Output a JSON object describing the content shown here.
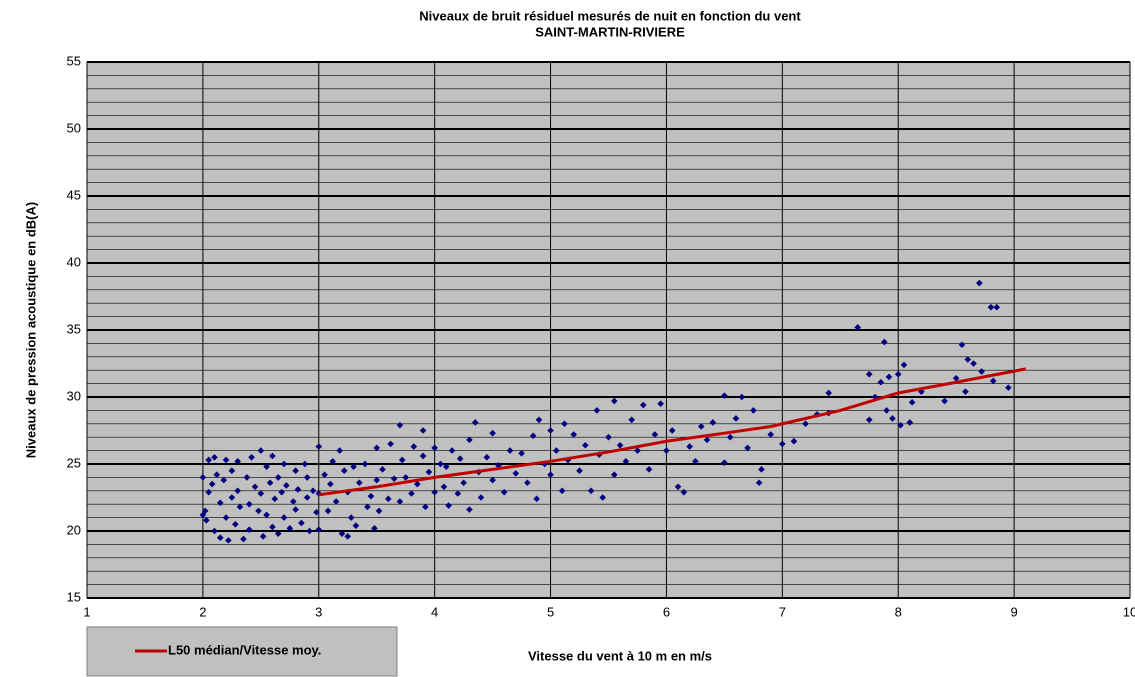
{
  "chart_data": {
    "type": "scatter",
    "title": "Niveaux de bruit  résiduel mesurés de nuit en fonction du vent",
    "subtitle": "SAINT-MARTIN-RIVIERE",
    "x_label": "Vitesse du vent  à 10 m en m/s",
    "y_label": "Niveaux de pression acoustique en dB(A)",
    "xlim": [
      1,
      10
    ],
    "xticks": [
      1,
      2,
      3,
      4,
      5,
      6,
      7,
      8,
      9,
      10
    ],
    "ylim": [
      15,
      55
    ],
    "yticks": [
      15,
      20,
      25,
      30,
      35,
      40,
      45,
      50,
      55
    ],
    "yminorticks": [
      16,
      17,
      18,
      19,
      21,
      22,
      23,
      24,
      26,
      27,
      28,
      29,
      31,
      32,
      33,
      34,
      36,
      37,
      38,
      39,
      41,
      42,
      43,
      44,
      46,
      47,
      48,
      49,
      51,
      52,
      53,
      54
    ],
    "grid": true,
    "legend": "bottom-left",
    "series": [
      {
        "type": "scatter",
        "color": "#000080",
        "x": [
          2.0,
          2.0,
          2.02,
          2.03,
          2.05,
          2.05,
          2.08,
          2.1,
          2.1,
          2.12,
          2.15,
          2.15,
          2.18,
          2.2,
          2.2,
          2.22,
          2.25,
          2.25,
          2.28,
          2.3,
          2.3,
          2.32,
          2.35,
          2.38,
          2.4,
          2.4,
          2.42,
          2.45,
          2.48,
          2.5,
          2.5,
          2.52,
          2.55,
          2.55,
          2.58,
          2.6,
          2.6,
          2.62,
          2.65,
          2.65,
          2.68,
          2.7,
          2.7,
          2.72,
          2.75,
          2.78,
          2.8,
          2.8,
          2.82,
          2.85,
          2.88,
          2.9,
          2.9,
          2.92,
          2.95,
          2.98,
          3.0,
          3.0,
          3.0,
          3.05,
          3.08,
          3.1,
          3.12,
          3.15,
          3.18,
          3.2,
          3.22,
          3.25,
          3.25,
          3.28,
          3.3,
          3.32,
          3.35,
          3.4,
          3.42,
          3.45,
          3.48,
          3.5,
          3.5,
          3.52,
          3.55,
          3.6,
          3.62,
          3.65,
          3.7,
          3.7,
          3.72,
          3.75,
          3.8,
          3.82,
          3.85,
          3.9,
          3.9,
          3.92,
          3.95,
          4.0,
          4.0,
          4.05,
          4.08,
          4.1,
          4.12,
          4.15,
          4.2,
          4.22,
          4.25,
          4.3,
          4.3,
          4.35,
          4.38,
          4.4,
          4.45,
          4.5,
          4.5,
          4.55,
          4.6,
          4.65,
          4.7,
          4.75,
          4.8,
          4.85,
          4.88,
          4.9,
          4.95,
          5.0,
          5.0,
          5.05,
          5.1,
          5.12,
          5.15,
          5.2,
          5.25,
          5.3,
          5.35,
          5.4,
          5.42,
          5.45,
          5.5,
          5.55,
          5.55,
          5.6,
          5.65,
          5.7,
          5.75,
          5.8,
          5.85,
          5.9,
          5.95,
          6.0,
          6.05,
          6.1,
          6.15,
          6.2,
          6.25,
          6.3,
          6.35,
          6.4,
          6.5,
          6.5,
          6.55,
          6.6,
          6.65,
          6.7,
          6.75,
          6.8,
          6.82,
          6.9,
          7.0,
          7.1,
          7.2,
          7.3,
          7.4,
          7.4,
          7.65,
          7.75,
          7.75,
          7.8,
          7.85,
          7.88,
          7.9,
          7.92,
          7.95,
          8.0,
          8.02,
          8.05,
          8.1,
          8.12,
          8.2,
          8.4,
          8.5,
          8.55,
          8.58,
          8.6,
          8.65,
          8.7,
          8.72,
          8.8,
          8.82,
          8.85,
          8.95
        ],
        "values": [
          21.2,
          24.0,
          21.5,
          20.8,
          25.3,
          22.9,
          23.5,
          25.5,
          20.0,
          24.2,
          22.1,
          19.5,
          23.8,
          25.3,
          21.0,
          19.3,
          24.5,
          22.5,
          20.5,
          25.2,
          23.0,
          21.8,
          19.4,
          24.0,
          22.0,
          20.1,
          25.5,
          23.3,
          21.5,
          26.0,
          22.8,
          19.6,
          24.8,
          21.2,
          23.6,
          25.6,
          20.3,
          22.4,
          24.0,
          19.8,
          22.9,
          25.0,
          21.0,
          23.4,
          20.2,
          22.2,
          24.5,
          21.6,
          23.1,
          20.6,
          25.0,
          22.5,
          24.0,
          20.0,
          23.0,
          21.4,
          26.3,
          22.8,
          20.1,
          24.2,
          21.5,
          23.5,
          25.2,
          22.2,
          26.0,
          19.8,
          24.5,
          19.6,
          22.9,
          21.0,
          24.8,
          20.4,
          23.6,
          25.0,
          21.8,
          22.6,
          20.2,
          26.2,
          23.8,
          21.5,
          24.6,
          22.4,
          26.5,
          23.9,
          27.9,
          22.2,
          25.3,
          24.0,
          22.8,
          26.3,
          23.5,
          25.6,
          27.5,
          21.8,
          24.4,
          22.9,
          26.2,
          25.0,
          23.3,
          24.8,
          21.9,
          26.0,
          22.8,
          25.4,
          23.6,
          26.8,
          21.6,
          28.1,
          24.4,
          22.5,
          25.5,
          23.8,
          27.3,
          24.9,
          22.9,
          26.0,
          24.3,
          25.8,
          23.6,
          27.1,
          22.4,
          28.3,
          25.0,
          24.2,
          27.5,
          26.0,
          23.0,
          28.0,
          25.3,
          27.2,
          24.5,
          26.4,
          23.0,
          29.0,
          25.7,
          22.5,
          27.0,
          24.2,
          29.7,
          26.4,
          25.2,
          28.3,
          26.0,
          29.4,
          24.6,
          27.2,
          29.5,
          26.0,
          27.5,
          23.3,
          22.9,
          26.3,
          25.2,
          27.8,
          26.8,
          28.1,
          30.1,
          25.1,
          27.0,
          28.4,
          30.0,
          26.2,
          29.0,
          23.6,
          24.6,
          27.2,
          26.5,
          26.7,
          28.0,
          28.7,
          30.3,
          28.8,
          35.2,
          31.7,
          28.3,
          30.0,
          31.1,
          34.1,
          29.0,
          31.5,
          28.4,
          31.7,
          27.9,
          32.4,
          28.1,
          29.6,
          30.4,
          29.7,
          31.4,
          33.9,
          30.4,
          32.8,
          32.5,
          38.5,
          31.9,
          36.7,
          31.2,
          36.7,
          30.7
        ]
      },
      {
        "type": "line",
        "name": "L50 médian/Vitesse moy.",
        "color": "#c00000",
        "x": [
          3.0,
          3.5,
          4.0,
          4.5,
          5.0,
          5.5,
          6.0,
          6.5,
          6.9,
          7.5,
          8.0,
          8.5,
          9.1
        ],
        "values": [
          22.7,
          23.3,
          24.0,
          24.6,
          25.2,
          25.9,
          26.7,
          27.3,
          27.8,
          29.0,
          30.3,
          31.1,
          32.1
        ]
      }
    ]
  }
}
